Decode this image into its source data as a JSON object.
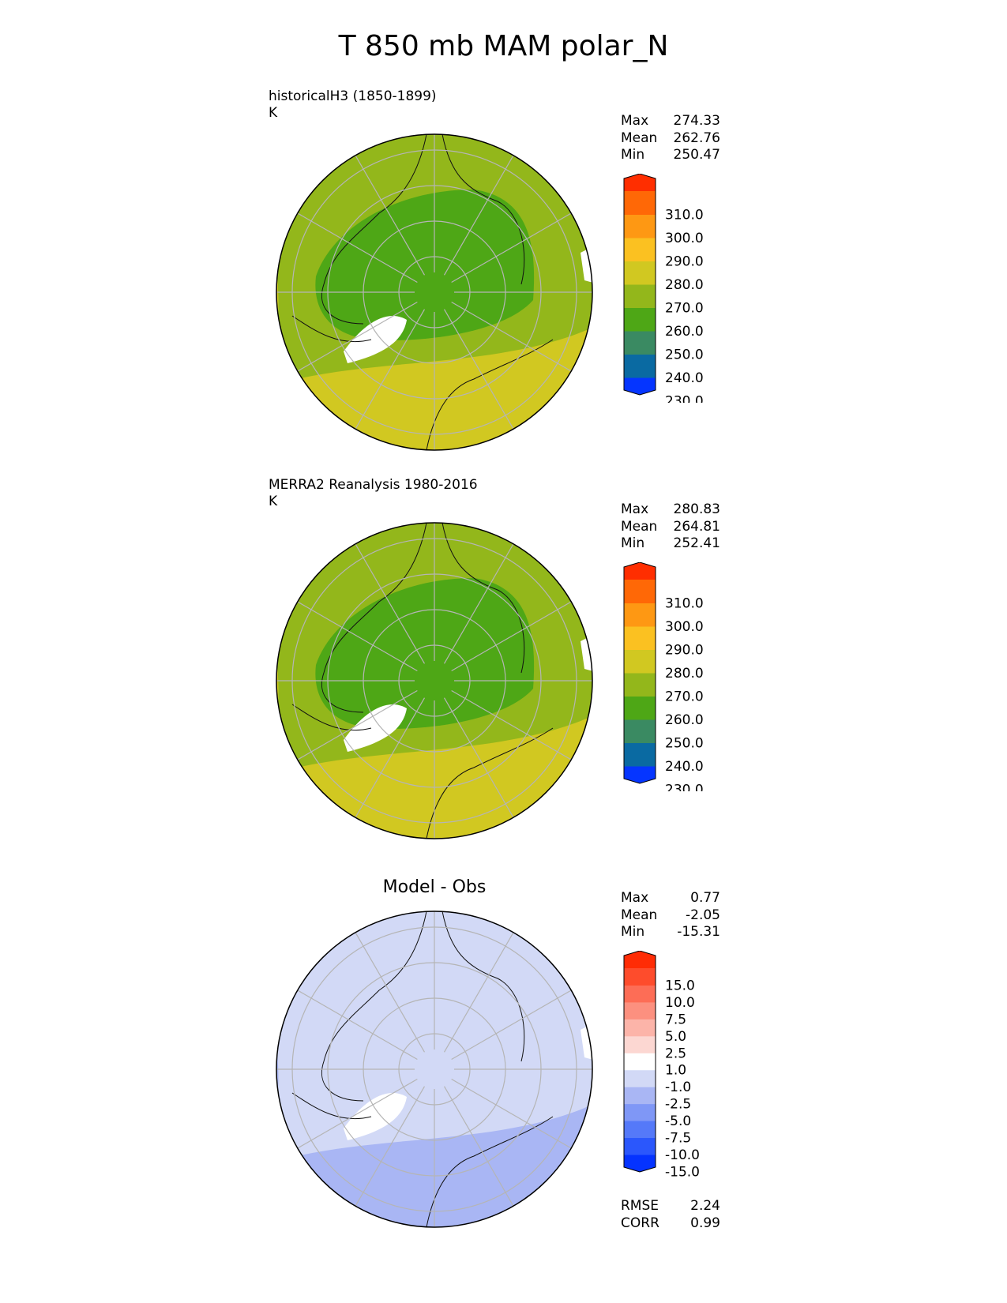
{
  "title": "T 850 mb MAM polar_N",
  "panels": [
    {
      "title": "historicalH3 (1850-1899)",
      "units": "K",
      "stats": [
        {
          "label": "Max",
          "value": "274.33"
        },
        {
          "label": "Mean",
          "value": "262.76"
        },
        {
          "label": "Min",
          "value": "250.47"
        }
      ],
      "colorbar": {
        "ticks": [
          "310.0",
          "300.0",
          "290.0",
          "280.0",
          "270.0",
          "260.0",
          "250.0",
          "240.0",
          "230.0"
        ],
        "colors": [
          "#0535ff",
          "#0a6aa2",
          "#3a8a62",
          "#4ea716",
          "#93b71b",
          "#d1c821",
          "#fbc121",
          "#fe9813",
          "#ff6806",
          "#ff2e00"
        ]
      }
    },
    {
      "title": "MERRA2 Reanalysis 1980-2016",
      "units": "K",
      "stats": [
        {
          "label": "Max",
          "value": "280.83"
        },
        {
          "label": "Mean",
          "value": "264.81"
        },
        {
          "label": "Min",
          "value": "252.41"
        }
      ],
      "colorbar": {
        "ticks": [
          "310.0",
          "300.0",
          "290.0",
          "280.0",
          "270.0",
          "260.0",
          "250.0",
          "240.0",
          "230.0"
        ],
        "colors": [
          "#0535ff",
          "#0a6aa2",
          "#3a8a62",
          "#4ea716",
          "#93b71b",
          "#d1c821",
          "#fbc121",
          "#fe9813",
          "#ff6806",
          "#ff2e00"
        ]
      }
    },
    {
      "title": "Model - Obs",
      "units": "",
      "stats": [
        {
          "label": "Max",
          "value": "0.77"
        },
        {
          "label": "Mean",
          "value": "-2.05"
        },
        {
          "label": "Min",
          "value": "-15.31"
        }
      ],
      "metrics": [
        {
          "label": "RMSE",
          "value": "2.24"
        },
        {
          "label": "CORR",
          "value": "0.99"
        }
      ],
      "colorbar": {
        "ticks": [
          "15.0",
          "10.0",
          "7.5",
          "5.0",
          "2.5",
          "1.0",
          "-1.0",
          "-2.5",
          "-5.0",
          "-7.5",
          "-10.0",
          "-15.0"
        ],
        "colors": [
          "#0533ff",
          "#2b57fc",
          "#5579f9",
          "#7f97f6",
          "#a9b6f4",
          "#d2d9f6",
          "#ffffff",
          "#fcd7d2",
          "#fcb4a9",
          "#fc907f",
          "#fd6d56",
          "#fe4c2c",
          "#ff2c05"
        ]
      }
    }
  ],
  "fields": {
    "model": {
      "outer": "#93b71b",
      "core": "#4ea716",
      "warm": "#d1c821",
      "land": "#ffffff"
    },
    "obs": {
      "outer": "#93b71b",
      "core": "#4ea716",
      "warm": "#d1c821",
      "land": "#ffffff"
    },
    "diff": {
      "outer": "#d2d9f6",
      "core": "#d2d9f6",
      "warm": "#a9b6f4",
      "land": "#ffffff"
    }
  }
}
